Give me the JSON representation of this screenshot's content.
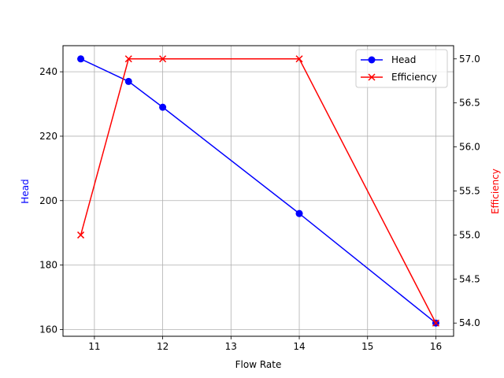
{
  "chart_data": {
    "type": "line",
    "title": "",
    "xlabel": "Flow Rate",
    "ylabel": "Head",
    "y2label": "Efficiency",
    "x": [
      10.8,
      11.5,
      12,
      14,
      16
    ],
    "series": [
      {
        "name": "Head",
        "axis": "left",
        "color": "#0000ff",
        "marker": "o",
        "values": [
          244,
          237,
          229,
          196,
          162
        ]
      },
      {
        "name": "Efficiency",
        "axis": "right",
        "color": "#ff0000",
        "marker": "x",
        "values": [
          55.0,
          57.0,
          57.0,
          57.0,
          54.0
        ]
      }
    ],
    "xlim": [
      10.54,
      16.26
    ],
    "ylim": [
      157.9,
      248.1
    ],
    "y2lim": [
      53.85,
      57.15
    ],
    "xticks": [
      "11",
      "12",
      "13",
      "14",
      "15",
      "16"
    ],
    "yticks": [
      "160",
      "180",
      "200",
      "220",
      "240"
    ],
    "y2ticks": [
      "54.0",
      "54.5",
      "55.0",
      "55.5",
      "56.0",
      "56.5",
      "57.0"
    ],
    "grid": true,
    "legend_position": "upper right"
  },
  "labels": {
    "xlabel": "Flow Rate",
    "ylabel": "Head",
    "y2label": "Efficiency",
    "legend_head": "Head",
    "legend_efficiency": "Efficiency"
  },
  "colors": {
    "head": "#0000ff",
    "efficiency": "#ff0000",
    "grid": "#b0b0b0"
  }
}
